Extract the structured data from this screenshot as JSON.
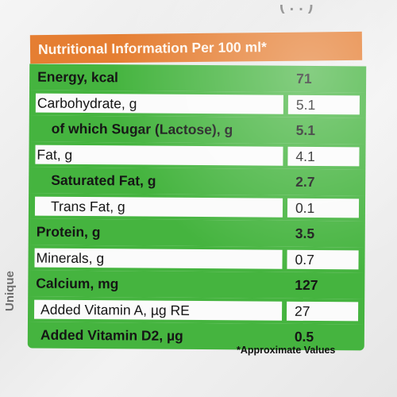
{
  "header": {
    "title": "Nutritional Information Per 100 ml*"
  },
  "top_fragment": "(..)",
  "rows": [
    {
      "name": "Energy, kcal",
      "value": "71"
    },
    {
      "name": "Carbohydrate, g",
      "value": "5.1"
    },
    {
      "name": "of which Sugar (Lactose), g",
      "value": "5.1"
    },
    {
      "name": "Fat, g",
      "value": "4.1"
    },
    {
      "name": "Saturated Fat, g",
      "value": "2.7"
    },
    {
      "name": "Trans Fat, g",
      "value": "0.1"
    },
    {
      "name": "Protein, g",
      "value": "3.5"
    },
    {
      "name": "Minerals, g",
      "value": "0.7"
    },
    {
      "name": "Calcium, mg",
      "value": "127"
    },
    {
      "name": "Added Vitamin A, µg RE",
      "value": "27"
    },
    {
      "name": "Added Vitamin D2, µg",
      "value": "0.5"
    }
  ],
  "footnote": "*Approximate Values",
  "side_label": "Unique",
  "colors": {
    "header_orange": "#e57e32",
    "table_green": "#45b43f",
    "cell_white": "#fbfbfb"
  }
}
